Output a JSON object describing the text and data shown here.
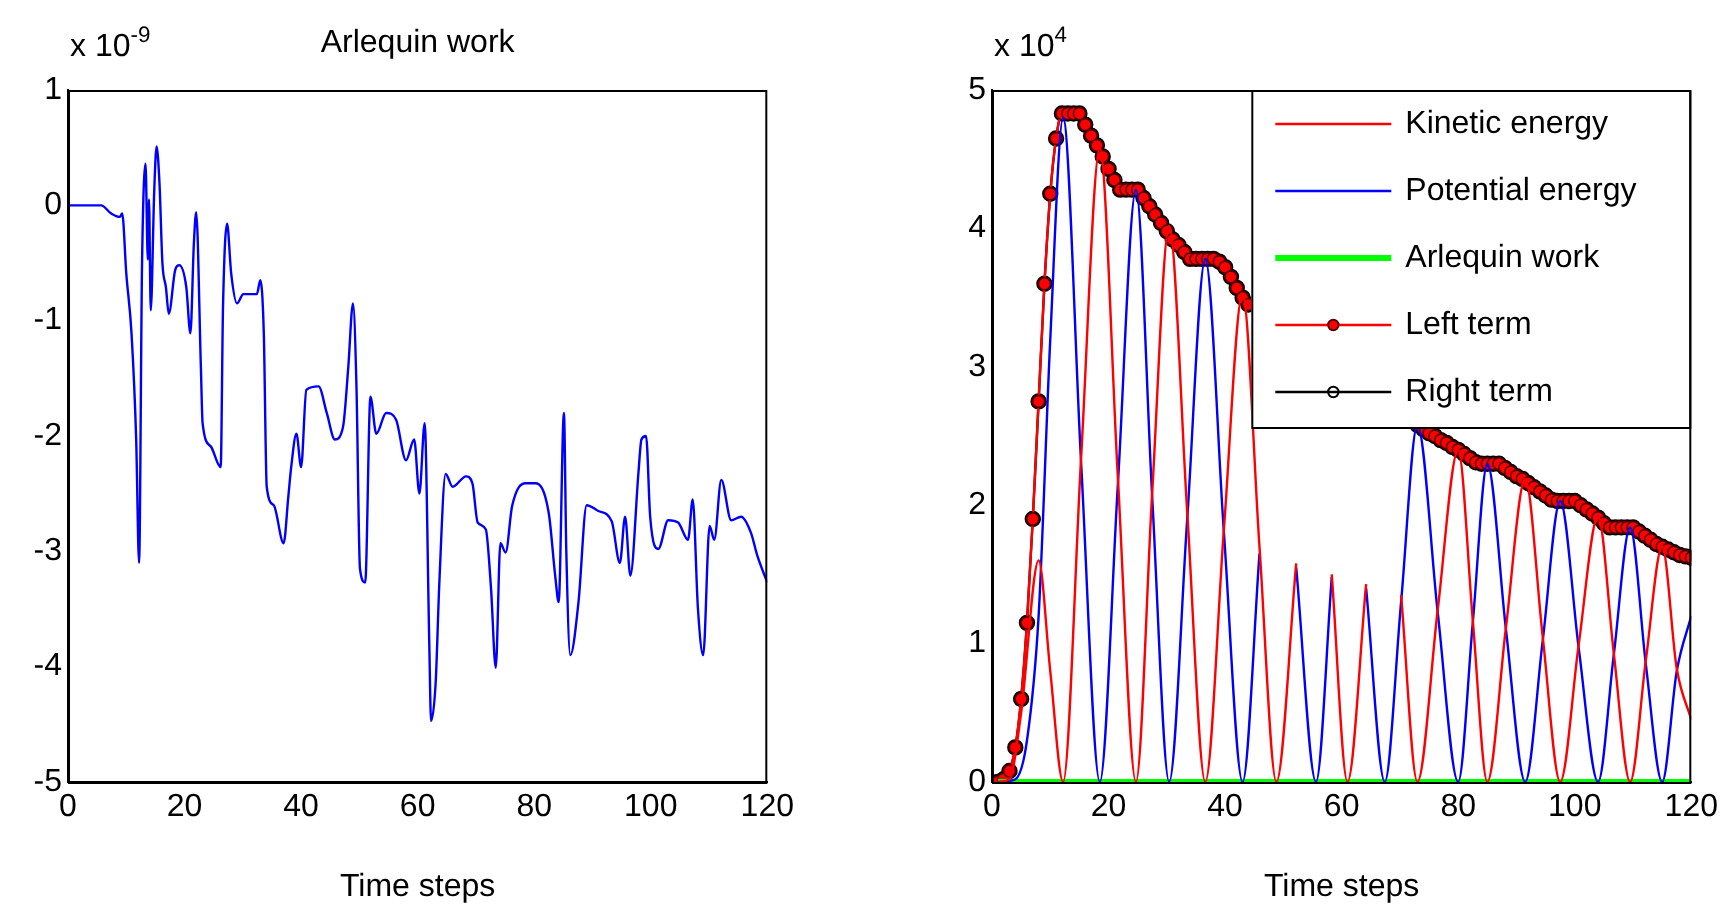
{
  "chart_data": [
    {
      "type": "line",
      "title": "Arlequin work",
      "xlabel": "Time steps",
      "annotations": [
        "x 10$^{-9}$"
      ],
      "xlim": [
        0,
        120
      ],
      "xticks": [
        0,
        20,
        40,
        60,
        80,
        100,
        120
      ],
      "ylim": [
        -5,
        1
      ],
      "yticks": [
        -5,
        -4,
        -3,
        -2,
        -1,
        0,
        1
      ],
      "legend": false,
      "marker": "none",
      "series": [
        {
          "color": "#0000ff",
          "x": [
            0,
            5.7,
            7.4,
            8.9,
            9.3,
            10,
            10.9,
            11.7,
            12.2,
            12.7,
            13.3,
            13.7,
            13.9,
            14.2,
            14.8,
            15.2,
            15.7,
            16.2,
            16.8,
            17.3,
            18.4,
            19.1,
            20.3,
            21,
            21.6,
            22,
            22.8,
            23.1,
            24.5,
            26.2,
            26.6,
            27.3,
            28,
            29,
            30.1,
            32.4,
            33,
            33.6,
            34.1,
            35.3,
            37,
            37.8,
            38.3,
            39.2,
            40,
            40.9,
            43,
            44.4,
            45.8,
            47.2,
            48.1,
            48.9,
            49.5,
            50.1,
            51,
            51.9,
            52.9,
            54.6,
            56.3,
            58,
            59.4,
            60.3,
            61.2,
            62,
            62.3,
            63.1,
            63.7,
            64.8,
            66,
            68.3,
            69.4,
            70.3,
            71.7,
            72.6,
            73.4,
            74.2,
            75.1,
            76.2,
            78.5,
            80.2,
            82.5,
            83.6,
            84.2,
            85.1,
            85.5,
            86.2,
            87.6,
            89,
            91,
            93.3,
            94.7,
            95.6,
            96.5,
            97.9,
            98.4,
            99.2,
            99.9,
            101.3,
            103,
            104.7,
            106.4,
            107.2,
            108.1,
            109,
            110.1,
            110.9,
            112.1,
            113.8,
            115.5,
            117.2,
            118.3,
            120
          ],
          "values": [
            0,
            0,
            -0.07,
            -0.1,
            -0.07,
            -0.59,
            -1.11,
            -2.03,
            -3.1,
            -0.53,
            0.36,
            -0.47,
            0.05,
            -0.91,
            0.13,
            0.51,
            0.19,
            -0.5,
            -0.71,
            -0.94,
            -0.56,
            -0.52,
            -0.71,
            -1.11,
            -0.33,
            -0.06,
            -1.4,
            -1.89,
            -2.09,
            -2.27,
            -0.88,
            -0.16,
            -0.59,
            -0.85,
            -0.77,
            -0.77,
            -0.65,
            -1.11,
            -2.44,
            -2.6,
            -2.93,
            -2.53,
            -2.27,
            -1.98,
            -2.27,
            -1.6,
            -1.57,
            -1.8,
            -2.03,
            -1.92,
            -1.4,
            -0.85,
            -1.57,
            -3.15,
            -3.27,
            -1.66,
            -1.98,
            -1.8,
            -1.86,
            -2.21,
            -2.03,
            -2.5,
            -1.89,
            -3.81,
            -4.47,
            -4.13,
            -3.3,
            -2.33,
            -2.44,
            -2.35,
            -2.41,
            -2.75,
            -2.81,
            -3.33,
            -4.01,
            -2.93,
            -3.01,
            -2.61,
            -2.41,
            -2.41,
            -2.67,
            -3.21,
            -3.44,
            -1.8,
            -2.98,
            -3.9,
            -3.44,
            -2.6,
            -2.65,
            -2.74,
            -3.1,
            -2.7,
            -3.21,
            -2.31,
            -2.03,
            -2,
            -2.7,
            -2.98,
            -2.73,
            -2.75,
            -2.9,
            -2.55,
            -3.5,
            -3.9,
            -2.78,
            -2.9,
            -2.38,
            -2.73,
            -2.7,
            -2.84,
            -3.04,
            -3.27
          ]
        }
      ]
    },
    {
      "type": "line",
      "xlabel": "Time steps",
      "annotations": [
        "x 10$^{4}$"
      ],
      "xlim": [
        0,
        120
      ],
      "xticks": [
        0,
        20,
        40,
        60,
        80,
        100,
        120
      ],
      "ylim": [
        0,
        5
      ],
      "yticks": [
        0,
        1,
        2,
        3,
        4,
        5
      ],
      "legend": "top right",
      "series": [
        {
          "name": "Kinetic energy",
          "color": "#ff0000",
          "marker": "none",
          "x": [
            1,
            3,
            5,
            8,
            10,
            12.2,
            15.3,
            18.5,
            21.6,
            24.7,
            27.5,
            30.4,
            33.5,
            36.6,
            39.8,
            43,
            45.9,
            48.8,
            52.2,
            55.6,
            58.3,
            61,
            64.2,
            67.4,
            70.2,
            73,
            76.5,
            80,
            82.5,
            85,
            88.2,
            91.5,
            94.5,
            97.5,
            100.7,
            104,
            106.7,
            109.5,
            112.2,
            115,
            117.5,
            120
          ],
          "values": [
            0,
            0.02,
            0.5,
            1.6,
            0.8,
            0,
            2.35,
            4.58,
            2.2,
            0,
            2.1,
            4.02,
            1.95,
            0,
            1.83,
            3.53,
            1.7,
            0,
            1.58,
            null,
            1.5,
            0,
            1.43,
            null,
            1.35,
            0,
            1.25,
            2.4,
            1.17,
            0,
            1.12,
            2.19,
            1.05,
            0,
            1,
            1.92,
            0.93,
            0,
            0.88,
            1.7,
            0.82,
            0.45
          ]
        },
        {
          "name": "Potential energy",
          "color": "#0000ff",
          "marker": "none",
          "x": [
            1,
            4,
            6,
            8,
            10,
            12.2,
            15.3,
            18.5,
            21.6,
            24.7,
            27.5,
            30.4,
            33.5,
            36.6,
            39.8,
            43,
            45.9,
            48.8,
            52.2,
            55.6,
            58.3,
            61,
            64.2,
            67.4,
            70.2,
            73,
            76.5,
            80,
            82.5,
            85,
            88.2,
            91.5,
            94.5,
            97.5,
            100.7,
            104,
            106.7,
            109.5,
            112.2,
            115,
            117.5,
            120
          ],
          "values": [
            0,
            0.02,
            0.3,
            1.2,
            3.2,
            4.8,
            2.3,
            0,
            2.15,
            4.28,
            2.05,
            0,
            1.9,
            3.78,
            1.8,
            0,
            1.65,
            null,
            1.55,
            0,
            1.48,
            null,
            1.4,
            0,
            1.3,
            2.58,
            1.22,
            0,
            1.15,
            2.3,
            1.1,
            0,
            1.02,
            2.03,
            0.96,
            0,
            0.92,
            1.84,
            0.85,
            0,
            0.8,
            1.2
          ]
        },
        {
          "name": "Arlequin work",
          "color": "#00ff00",
          "marker": "none",
          "x": [
            1,
            120
          ],
          "values": [
            0,
            0
          ]
        },
        {
          "name": "Left term",
          "color": "#ff0000",
          "marker": "circle",
          "x": [
            1,
            2,
            3,
            4,
            5,
            6,
            7,
            8,
            9,
            10,
            11,
            12,
            13,
            14,
            15,
            16,
            17,
            18,
            19,
            20,
            21,
            22,
            23,
            24,
            25,
            26,
            27,
            28,
            29,
            30,
            31,
            32,
            33,
            34,
            35,
            36,
            37,
            38,
            39,
            40,
            41,
            42,
            43,
            44,
            45,
            73,
            74,
            75,
            76,
            77,
            78,
            79,
            80,
            81,
            82,
            83,
            84,
            85,
            86,
            87,
            88,
            89,
            90,
            91,
            92,
            93,
            94,
            95,
            96,
            97,
            98,
            99,
            100,
            101,
            102,
            103,
            104,
            105,
            106,
            107,
            108,
            109,
            110,
            111,
            112,
            113,
            114,
            115,
            116,
            117,
            118,
            119,
            120
          ],
          "values": [
            0,
            0.02,
            0.08,
            0.25,
            0.6,
            1.15,
            1.9,
            2.75,
            3.6,
            4.25,
            4.65,
            4.83,
            4.83,
            4.83,
            4.83,
            4.75,
            4.67,
            4.6,
            4.52,
            4.43,
            4.35,
            4.28,
            4.28,
            4.28,
            4.28,
            4.22,
            4.16,
            4.1,
            4.04,
            3.98,
            3.92,
            3.88,
            3.83,
            3.78,
            3.78,
            3.78,
            3.78,
            3.78,
            3.76,
            3.72,
            3.65,
            3.57,
            3.5,
            3.45,
            null,
            2.58,
            2.55,
            2.52,
            2.5,
            2.47,
            2.45,
            2.42,
            2.4,
            2.37,
            2.34,
            2.31,
            2.3,
            2.3,
            2.3,
            2.3,
            2.27,
            2.24,
            2.21,
            2.19,
            2.16,
            2.13,
            2.1,
            2.07,
            2.04,
            2.03,
            2.03,
            2.03,
            2.03,
            2,
            1.97,
            1.94,
            1.91,
            1.87,
            1.84,
            1.84,
            1.84,
            1.84,
            1.84,
            1.81,
            1.78,
            1.75,
            1.72,
            1.7,
            1.68,
            1.66,
            1.64,
            1.63,
            1.62
          ]
        },
        {
          "name": "Right term",
          "color": "#000000",
          "marker": "circle",
          "x": [
            1,
            2,
            3,
            4,
            5,
            6,
            7,
            8,
            9,
            10,
            11,
            12,
            13,
            14,
            15,
            16,
            17,
            18,
            19,
            20,
            21,
            22,
            23,
            24,
            25,
            26,
            27,
            28,
            29,
            30,
            31,
            32,
            33,
            34,
            35,
            36,
            37,
            38,
            39,
            40,
            41,
            42,
            43,
            44,
            45,
            73,
            74,
            75,
            76,
            77,
            78,
            79,
            80,
            81,
            82,
            83,
            84,
            85,
            86,
            87,
            88,
            89,
            90,
            91,
            92,
            93,
            94,
            95,
            96,
            97,
            98,
            99,
            100,
            101,
            102,
            103,
            104,
            105,
            106,
            107,
            108,
            109,
            110,
            111,
            112,
            113,
            114,
            115,
            116,
            117,
            118,
            119,
            120
          ],
          "values": [
            0,
            0.02,
            0.08,
            0.25,
            0.6,
            1.15,
            1.9,
            2.75,
            3.6,
            4.25,
            4.65,
            4.83,
            4.83,
            4.83,
            4.83,
            4.75,
            4.67,
            4.6,
            4.52,
            4.43,
            4.35,
            4.28,
            4.28,
            4.28,
            4.28,
            4.22,
            4.16,
            4.1,
            4.04,
            3.98,
            3.92,
            3.88,
            3.83,
            3.78,
            3.78,
            3.78,
            3.78,
            3.78,
            3.76,
            3.72,
            3.65,
            3.57,
            3.5,
            3.45,
            null,
            2.58,
            2.55,
            2.52,
            2.5,
            2.47,
            2.45,
            2.42,
            2.4,
            2.37,
            2.34,
            2.31,
            2.3,
            2.3,
            2.3,
            2.3,
            2.27,
            2.24,
            2.21,
            2.19,
            2.16,
            2.13,
            2.1,
            2.07,
            2.04,
            2.03,
            2.03,
            2.03,
            2.03,
            2,
            1.97,
            1.94,
            1.91,
            1.87,
            1.84,
            1.84,
            1.84,
            1.84,
            1.84,
            1.81,
            1.78,
            1.75,
            1.72,
            1.7,
            1.68,
            1.66,
            1.64,
            1.63,
            1.62
          ]
        }
      ]
    }
  ]
}
